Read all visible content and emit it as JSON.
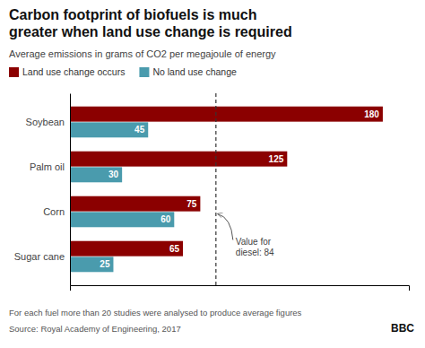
{
  "chart_data": {
    "type": "bar",
    "orientation": "horizontal",
    "title": "Carbon footprint of biofuels is much\ngreater when land use change is required",
    "subtitle": "Average emissions in grams of CO2 per megajoule of energy",
    "categories": [
      "Soybean",
      "Palm oil",
      "Corn",
      "Sugar cane"
    ],
    "series": [
      {
        "name": "Land use change occurs",
        "color": "#8B0000",
        "values": [
          180,
          125,
          75,
          65
        ]
      },
      {
        "name": "No land use change",
        "color": "#4A9BAD",
        "values": [
          45,
          30,
          60,
          25
        ]
      }
    ],
    "xlim": [
      0,
      195
    ],
    "xticks": [],
    "tick_labels": "y",
    "data_labels": true,
    "grid": false,
    "legend": "top",
    "annotations": [
      {
        "text": "Value for\ndiesel: 84",
        "x": 84
      }
    ],
    "footnote": "For each fuel more than 20 studies were analysed to produce average figures",
    "source": "Source: Royal Academy of Engineering, 2017",
    "credit": "BBC"
  }
}
